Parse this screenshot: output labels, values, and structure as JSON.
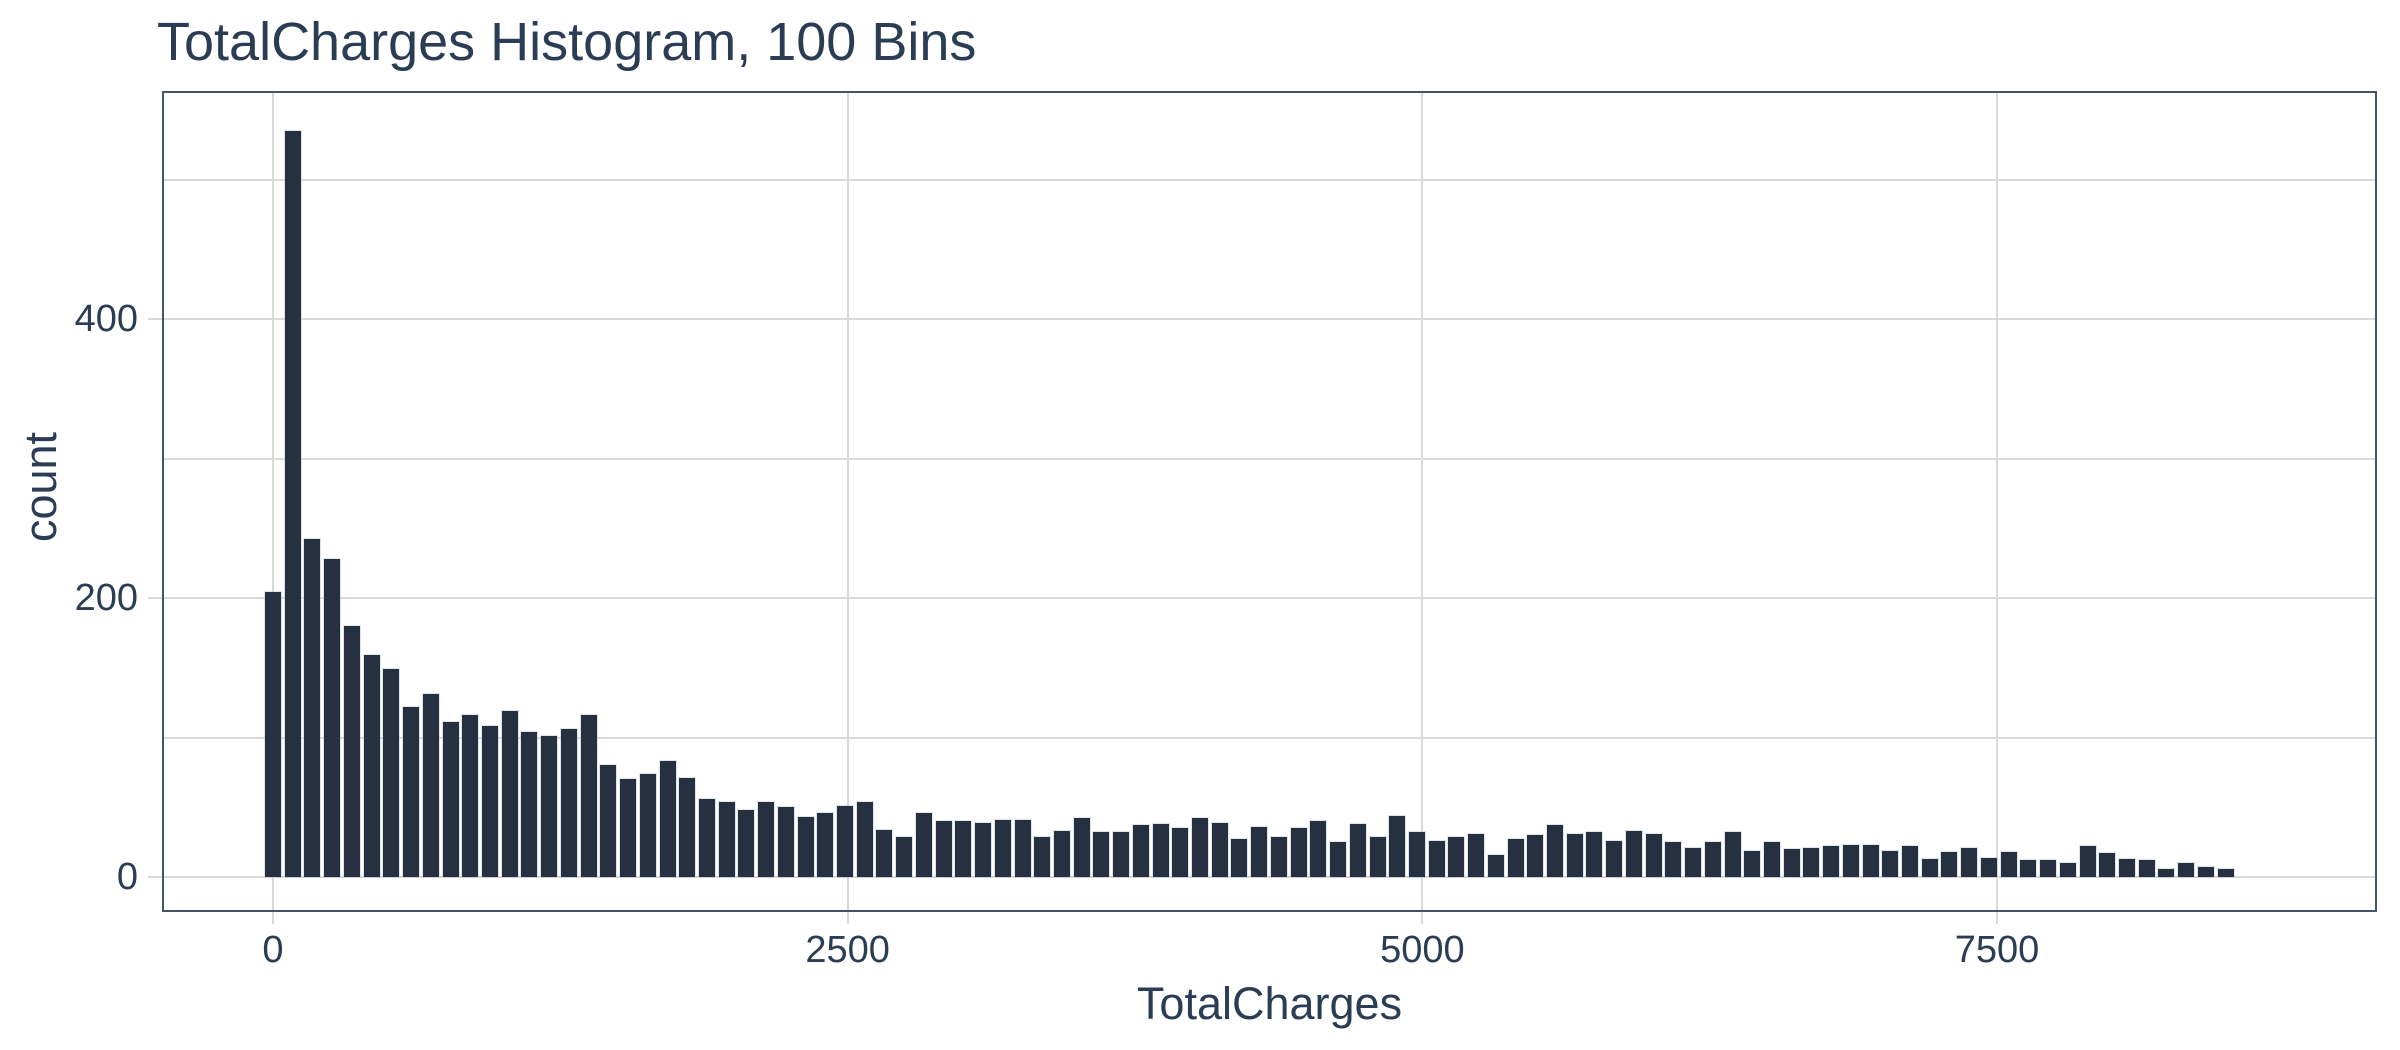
{
  "theme": {
    "background": "#ffffff",
    "text_color": "#2b3d54",
    "bar_color": "#253140",
    "grid_color": "#d9d9d9",
    "border_color": "#44536a"
  },
  "chart_data": {
    "type": "bar",
    "subtype": "histogram",
    "title": "TotalCharges Histogram, 100 Bins",
    "xlabel": "TotalCharges",
    "ylabel": "count",
    "bins": 100,
    "bin_size": 85.8,
    "first_bin_center": 0,
    "xlim": [
      -483,
      8760
    ],
    "ylim": [
      0,
      563
    ],
    "x_ticks": [
      0,
      2500,
      5000,
      7500
    ],
    "y_ticks": [
      0,
      200,
      400
    ],
    "y_gridlines": [
      0,
      100,
      200,
      300,
      400,
      500
    ],
    "grid": true,
    "legend": false,
    "values": [
      204,
      535,
      242,
      228,
      180,
      159,
      149,
      122,
      131,
      111,
      116,
      108,
      119,
      104,
      101,
      106,
      116,
      80,
      70,
      74,
      83,
      71,
      56,
      54,
      48,
      54,
      50,
      43,
      46,
      51,
      54,
      34,
      29,
      46,
      40,
      40,
      39,
      41,
      41,
      29,
      33,
      42,
      32,
      32,
      37,
      38,
      35,
      42,
      39,
      27,
      36,
      29,
      35,
      40,
      25,
      38,
      29,
      44,
      32,
      26,
      29,
      31,
      16,
      27,
      30,
      37,
      31,
      32,
      26,
      33,
      31,
      25,
      21,
      25,
      32,
      19,
      25,
      20,
      21,
      22,
      23,
      23,
      19,
      22,
      13,
      18,
      21,
      14,
      18,
      12,
      12,
      10,
      22,
      17,
      13,
      12,
      6,
      10,
      7,
      6
    ]
  }
}
